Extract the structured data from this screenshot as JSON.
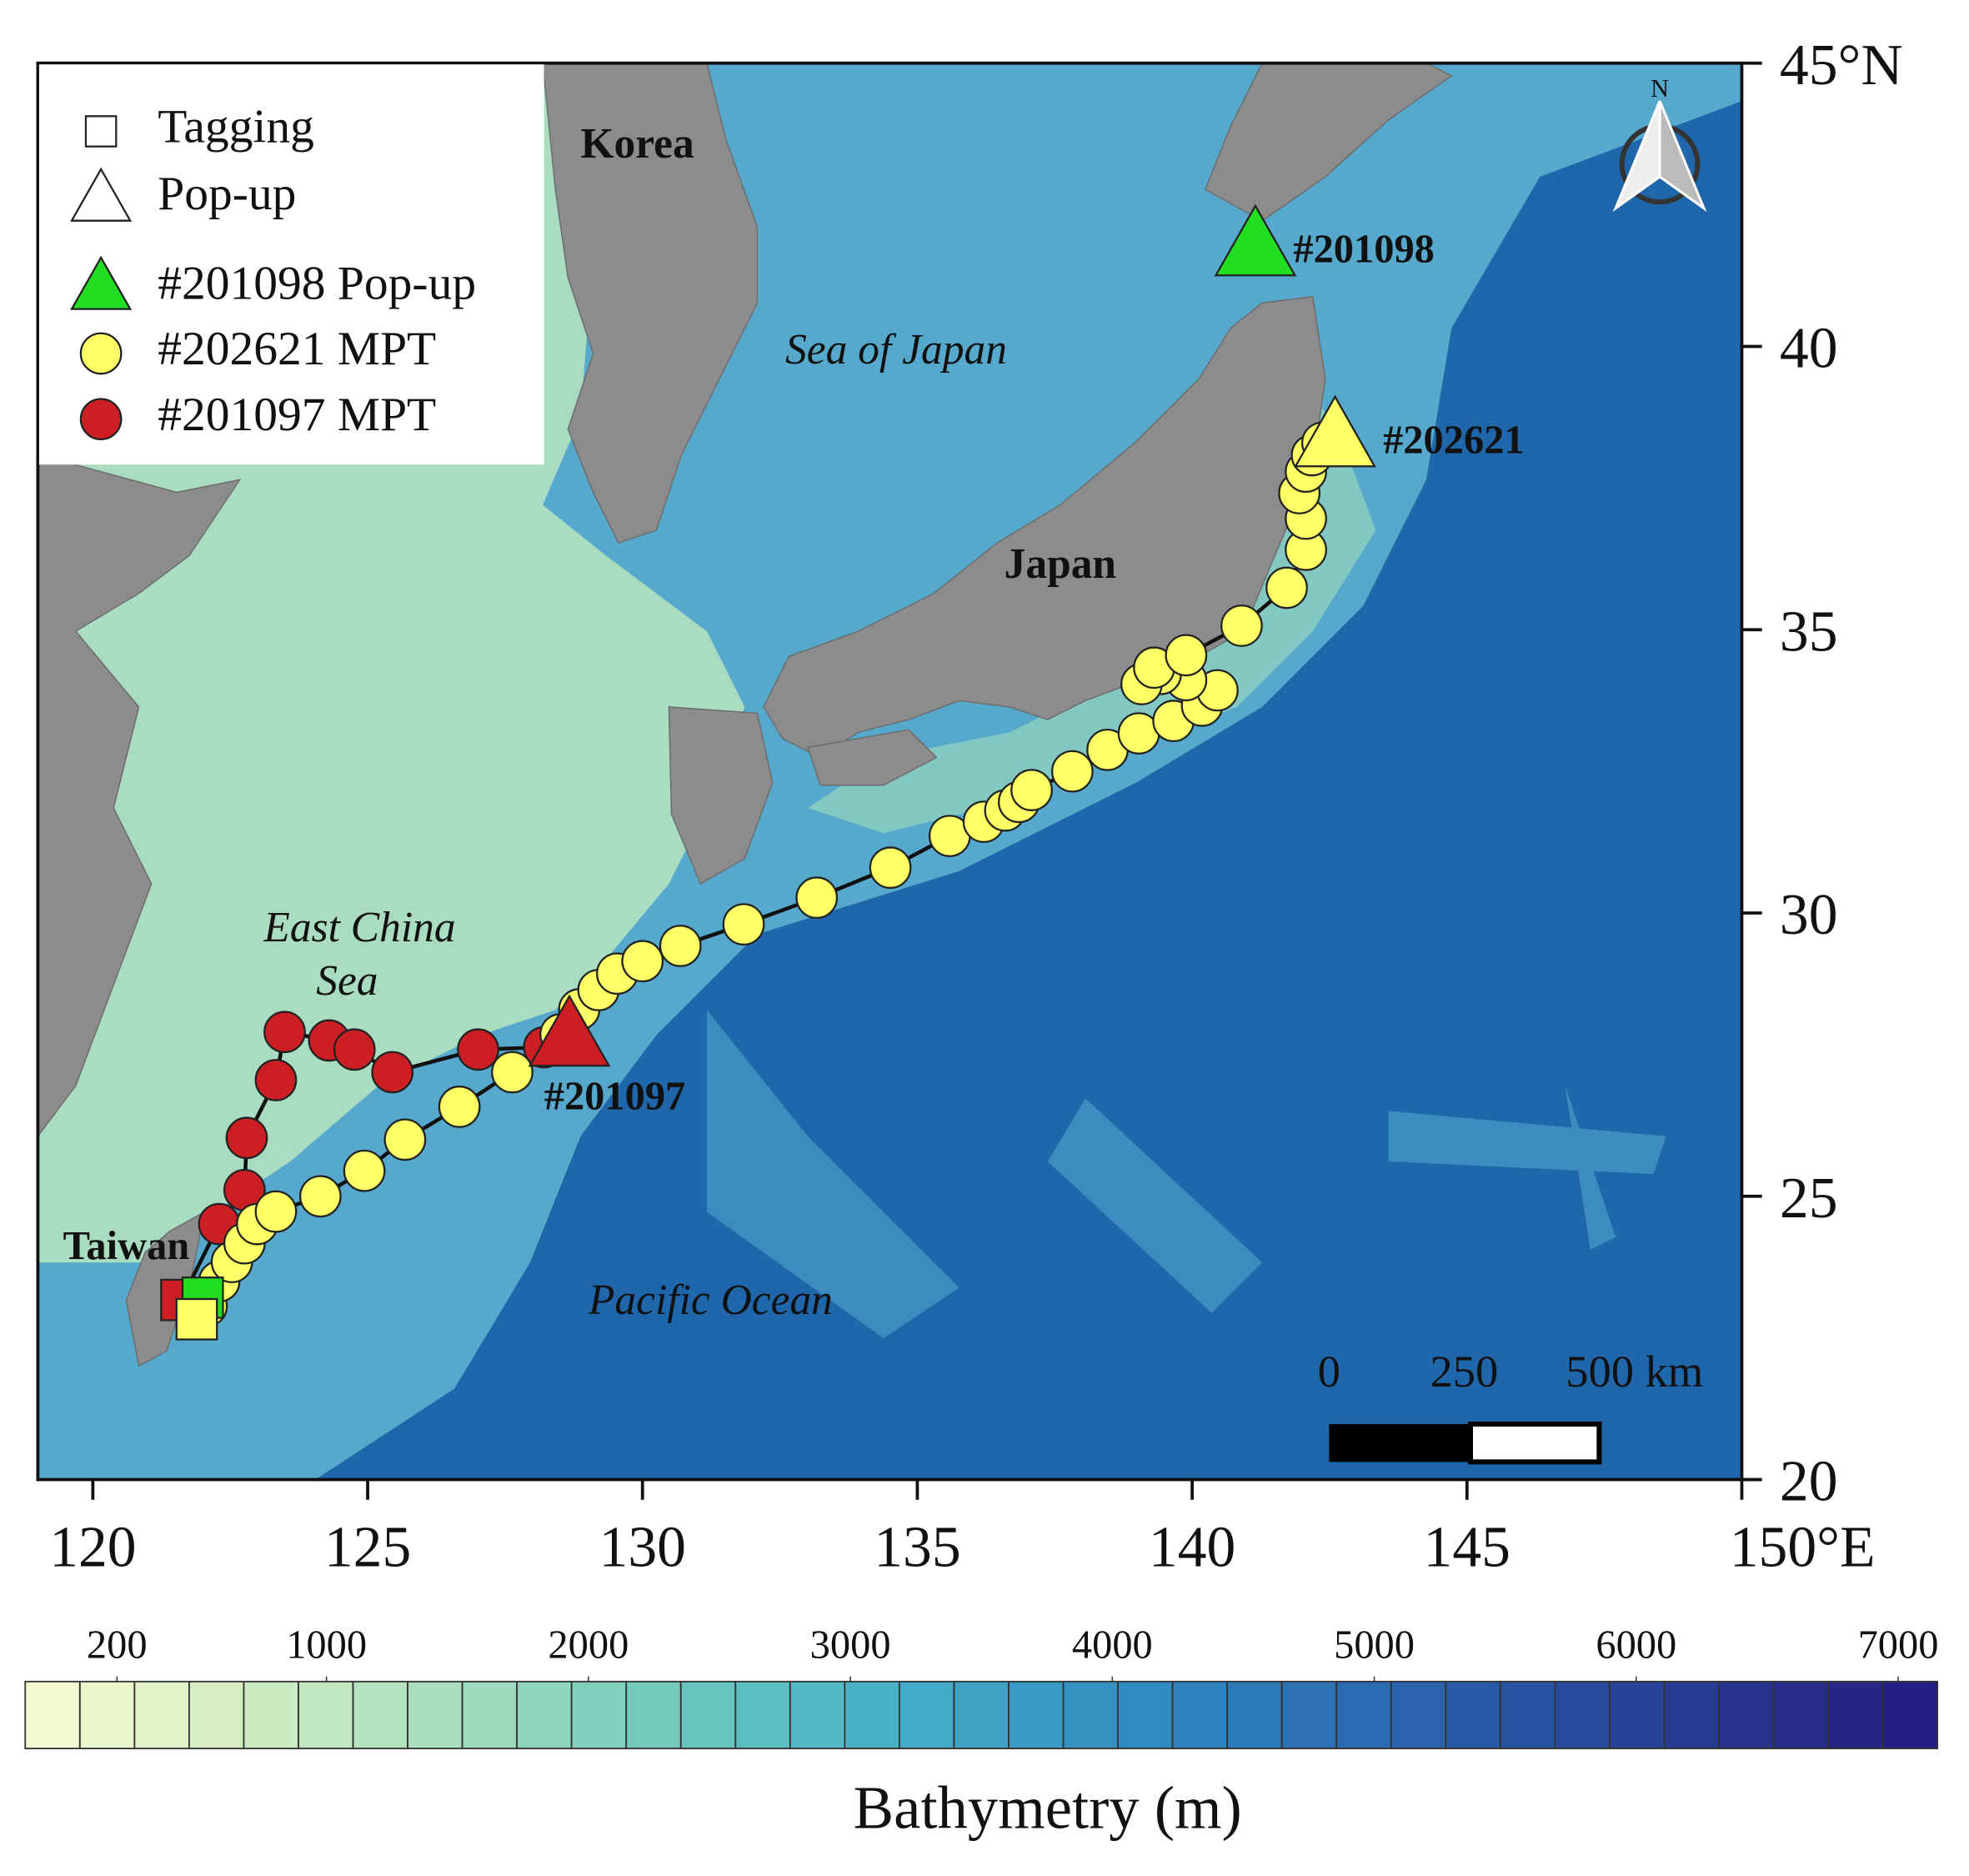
{
  "chart_data": {
    "type": "map",
    "xlim": [
      119,
      150
    ],
    "ylim": [
      20,
      45
    ],
    "xticks": [
      120,
      125,
      130,
      135,
      140,
      145,
      {
        "value": 150,
        "label": "150°E"
      }
    ],
    "yticks": [
      20,
      25,
      30,
      35,
      40,
      {
        "value": 45,
        "label": "45°N"
      }
    ],
    "legend": {
      "markers": [
        "Tagging",
        "Pop-up"
      ],
      "corner": "upper left"
    },
    "north_arrow": "N",
    "places": {
      "korea": "Korea",
      "sea_of_japan": "Sea of Japan",
      "japan": "Japan",
      "east_china_sea": [
        "East China",
        "Sea"
      ],
      "pacific_ocean": "Pacific Ocean",
      "taiwan": "Taiwan"
    },
    "scale_bar": {
      "labels": [
        "0",
        "250",
        "500 km"
      ]
    },
    "series": [
      {
        "name": "#201098 Pop-up",
        "label": "#201098",
        "color": "#22dd22",
        "tagging": [
          122.0,
          23.21
        ],
        "popup": [
          141.15,
          41.76
        ]
      },
      {
        "name": "#202621 MPT",
        "label": "#202621",
        "color": "#ffff66",
        "tagging": [
          121.89,
          22.83
        ],
        "popup": [
          142.6,
          38.39
        ],
        "lon": [
          122.07,
          122.3,
          122.53,
          122.76,
          122.99,
          123.33,
          124.14,
          124.94,
          125.68,
          126.67,
          127.63,
          128.51,
          128.85,
          129.2,
          129.54,
          130.0,
          130.69,
          131.84,
          133.17,
          134.51,
          135.59,
          136.21,
          136.6,
          136.85,
          137.08,
          137.82,
          138.46,
          139.03,
          139.66,
          140.18,
          140.46,
          139.89,
          139.43,
          139.08,
          139.31,
          139.89,
          140.9,
          141.72,
          142.07,
          142.07,
          141.95,
          142.07,
          142.18,
          142.37
        ],
        "lat": [
          23.06,
          23.5,
          23.84,
          24.17,
          24.51,
          24.73,
          25.0,
          25.45,
          26.0,
          26.58,
          27.19,
          27.86,
          28.3,
          28.64,
          28.93,
          29.15,
          29.42,
          29.8,
          30.27,
          30.8,
          31.36,
          31.61,
          31.81,
          31.96,
          32.17,
          32.5,
          32.88,
          33.17,
          33.39,
          33.66,
          33.93,
          34.11,
          34.22,
          34.04,
          34.33,
          34.55,
          35.07,
          35.74,
          36.41,
          36.96,
          37.41,
          37.79,
          38.08,
          38.3
        ]
      },
      {
        "name": "#201097 MPT",
        "label": "#201097",
        "color": "#cc1f24",
        "tagging": [
          121.61,
          23.17
        ],
        "popup": [
          128.67,
          27.81
        ],
        "lon": [
          122.3,
          122.76,
          122.8,
          123.33,
          123.49,
          124.3,
          124.76,
          125.45,
          127.01,
          128.21
        ],
        "lat": [
          24.51,
          25.11,
          26.03,
          27.05,
          27.9,
          27.75,
          27.59,
          27.19,
          27.59,
          27.63
        ]
      }
    ],
    "colorbar": {
      "title": "Bathymetry (m)",
      "clim": [
        -150,
        7150
      ],
      "ticks": [
        200,
        1000,
        2000,
        3000,
        4000,
        5000,
        6000,
        7000
      ],
      "colors": [
        "#f5fad2",
        "#ecf6cd",
        "#e2f2c9",
        "#d7eec5",
        "#cceac2",
        "#c1e6c0",
        "#b5e2bf",
        "#a9debe",
        "#9cd9bd",
        "#8fd4bd",
        "#82cfbd",
        "#75cabe",
        "#68c4bf",
        "#5cbec1",
        "#52b8c3",
        "#49b1c5",
        "#42aac6",
        "#3da2c6",
        "#389ac5",
        "#3492c3",
        "#318ac0",
        "#2f82bd",
        "#2d7ab9",
        "#2c72b5",
        "#2b6ab1",
        "#2a62ac",
        "#295aa7",
        "#2852a2",
        "#284a9d",
        "#274298",
        "#263a93",
        "#26338e",
        "#252c8a",
        "#252686",
        "#241f82"
      ]
    }
  }
}
